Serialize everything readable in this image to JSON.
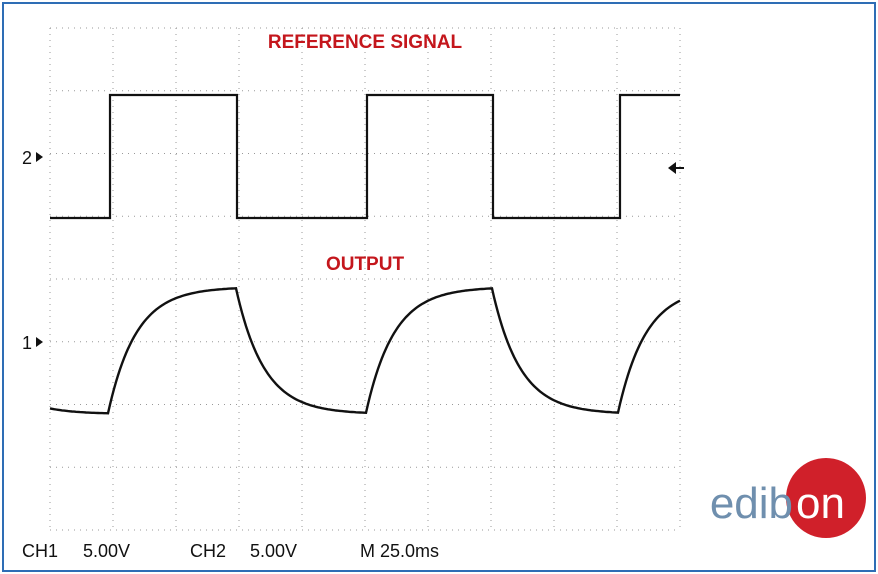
{
  "screen": {
    "reference_label": "REFERENCE SIGNAL",
    "output_label": "OUTPUT",
    "ch2_marker": "2",
    "ch1_marker": "1"
  },
  "status_bar": {
    "ch1_label": "CH1",
    "ch1_scale": "5.00V",
    "ch2_label": "CH2",
    "ch2_scale": "5.00V",
    "timebase": "M 25.0ms"
  },
  "logo": {
    "left": "edib",
    "right": "on"
  }
}
